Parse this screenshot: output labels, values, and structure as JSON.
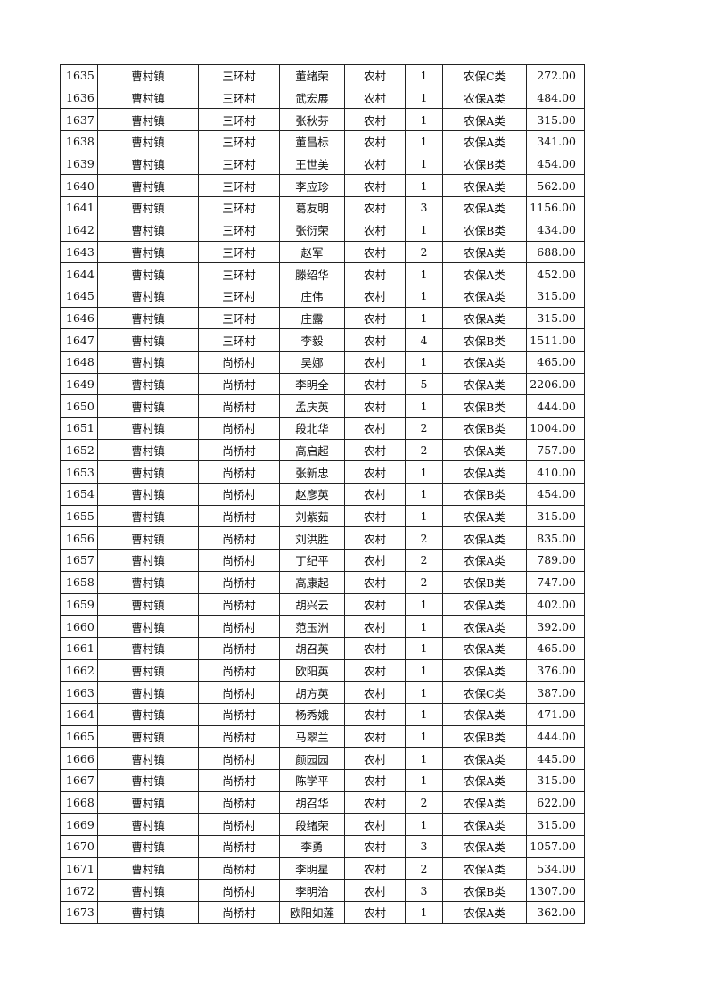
{
  "table": {
    "rows": [
      [
        "1635",
        "曹村镇",
        "三环村",
        "董绪荣",
        "农村",
        "1",
        "农保C类",
        "272.00"
      ],
      [
        "1636",
        "曹村镇",
        "三环村",
        "武宏展",
        "农村",
        "1",
        "农保A类",
        "484.00"
      ],
      [
        "1637",
        "曹村镇",
        "三环村",
        "张秋芬",
        "农村",
        "1",
        "农保A类",
        "315.00"
      ],
      [
        "1638",
        "曹村镇",
        "三环村",
        "董昌标",
        "农村",
        "1",
        "农保A类",
        "341.00"
      ],
      [
        "1639",
        "曹村镇",
        "三环村",
        "王世美",
        "农村",
        "1",
        "农保B类",
        "454.00"
      ],
      [
        "1640",
        "曹村镇",
        "三环村",
        "李应珍",
        "农村",
        "1",
        "农保A类",
        "562.00"
      ],
      [
        "1641",
        "曹村镇",
        "三环村",
        "葛友明",
        "农村",
        "3",
        "农保A类",
        "1156.00"
      ],
      [
        "1642",
        "曹村镇",
        "三环村",
        "张衍荣",
        "农村",
        "1",
        "农保B类",
        "434.00"
      ],
      [
        "1643",
        "曹村镇",
        "三环村",
        "赵军",
        "农村",
        "2",
        "农保A类",
        "688.00"
      ],
      [
        "1644",
        "曹村镇",
        "三环村",
        "滕绍华",
        "农村",
        "1",
        "农保A类",
        "452.00"
      ],
      [
        "1645",
        "曹村镇",
        "三环村",
        "庄伟",
        "农村",
        "1",
        "农保A类",
        "315.00"
      ],
      [
        "1646",
        "曹村镇",
        "三环村",
        "庄露",
        "农村",
        "1",
        "农保A类",
        "315.00"
      ],
      [
        "1647",
        "曹村镇",
        "三环村",
        "李毅",
        "农村",
        "4",
        "农保B类",
        "1511.00"
      ],
      [
        "1648",
        "曹村镇",
        "尚桥村",
        "吴娜",
        "农村",
        "1",
        "农保A类",
        "465.00"
      ],
      [
        "1649",
        "曹村镇",
        "尚桥村",
        "李明全",
        "农村",
        "5",
        "农保A类",
        "2206.00"
      ],
      [
        "1650",
        "曹村镇",
        "尚桥村",
        "孟庆英",
        "农村",
        "1",
        "农保B类",
        "444.00"
      ],
      [
        "1651",
        "曹村镇",
        "尚桥村",
        "段北华",
        "农村",
        "2",
        "农保B类",
        "1004.00"
      ],
      [
        "1652",
        "曹村镇",
        "尚桥村",
        "高启超",
        "农村",
        "2",
        "农保A类",
        "757.00"
      ],
      [
        "1653",
        "曹村镇",
        "尚桥村",
        "张新忠",
        "农村",
        "1",
        "农保A类",
        "410.00"
      ],
      [
        "1654",
        "曹村镇",
        "尚桥村",
        "赵彦英",
        "农村",
        "1",
        "农保B类",
        "454.00"
      ],
      [
        "1655",
        "曹村镇",
        "尚桥村",
        "刘紫茹",
        "农村",
        "1",
        "农保A类",
        "315.00"
      ],
      [
        "1656",
        "曹村镇",
        "尚桥村",
        "刘洪胜",
        "农村",
        "2",
        "农保A类",
        "835.00"
      ],
      [
        "1657",
        "曹村镇",
        "尚桥村",
        "丁纪平",
        "农村",
        "2",
        "农保A类",
        "789.00"
      ],
      [
        "1658",
        "曹村镇",
        "尚桥村",
        "高康起",
        "农村",
        "2",
        "农保B类",
        "747.00"
      ],
      [
        "1659",
        "曹村镇",
        "尚桥村",
        "胡兴云",
        "农村",
        "1",
        "农保A类",
        "402.00"
      ],
      [
        "1660",
        "曹村镇",
        "尚桥村",
        "范玉洲",
        "农村",
        "1",
        "农保A类",
        "392.00"
      ],
      [
        "1661",
        "曹村镇",
        "尚桥村",
        "胡召英",
        "农村",
        "1",
        "农保A类",
        "465.00"
      ],
      [
        "1662",
        "曹村镇",
        "尚桥村",
        "欧阳英",
        "农村",
        "1",
        "农保A类",
        "376.00"
      ],
      [
        "1663",
        "曹村镇",
        "尚桥村",
        "胡方英",
        "农村",
        "1",
        "农保C类",
        "387.00"
      ],
      [
        "1664",
        "曹村镇",
        "尚桥村",
        "杨秀娥",
        "农村",
        "1",
        "农保A类",
        "471.00"
      ],
      [
        "1665",
        "曹村镇",
        "尚桥村",
        "马翠兰",
        "农村",
        "1",
        "农保B类",
        "444.00"
      ],
      [
        "1666",
        "曹村镇",
        "尚桥村",
        "颜园园",
        "农村",
        "1",
        "农保A类",
        "445.00"
      ],
      [
        "1667",
        "曹村镇",
        "尚桥村",
        "陈学平",
        "农村",
        "1",
        "农保A类",
        "315.00"
      ],
      [
        "1668",
        "曹村镇",
        "尚桥村",
        "胡召华",
        "农村",
        "2",
        "农保A类",
        "622.00"
      ],
      [
        "1669",
        "曹村镇",
        "尚桥村",
        "段绪荣",
        "农村",
        "1",
        "农保A类",
        "315.00"
      ],
      [
        "1670",
        "曹村镇",
        "尚桥村",
        "李勇",
        "农村",
        "3",
        "农保A类",
        "1057.00"
      ],
      [
        "1671",
        "曹村镇",
        "尚桥村",
        "李明星",
        "农村",
        "2",
        "农保A类",
        "534.00"
      ],
      [
        "1672",
        "曹村镇",
        "尚桥村",
        "李明治",
        "农村",
        "3",
        "农保B类",
        "1307.00"
      ],
      [
        "1673",
        "曹村镇",
        "尚桥村",
        "欧阳如莲",
        "农村",
        "1",
        "农保A类",
        "362.00"
      ]
    ]
  }
}
